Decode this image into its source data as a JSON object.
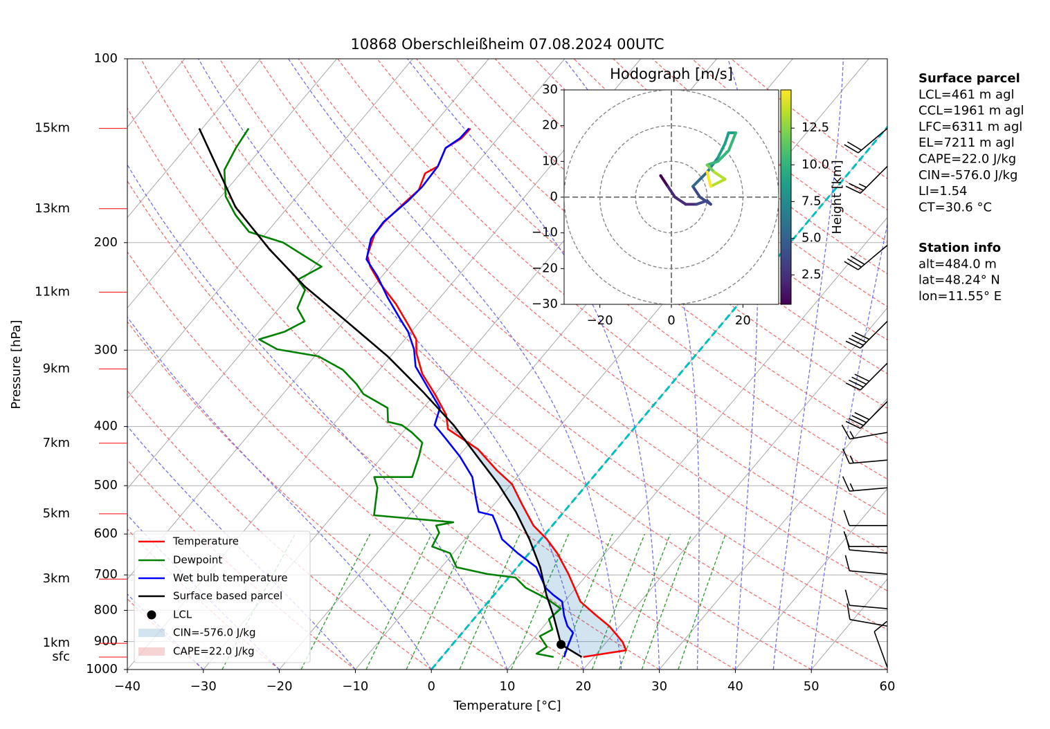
{
  "chart_data": {
    "type": "skewt",
    "title": "10868 Oberschleißheim 07.08.2024 00UTC",
    "xlabel": "Temperature [°C]",
    "ylabel": "Pressure [hPa]",
    "xlim": [
      -40,
      60
    ],
    "ylim": [
      1000,
      100
    ],
    "log_y": true,
    "grid": true,
    "xticks": [
      {
        "value": -40,
        "label": "−40"
      },
      {
        "value": -30,
        "label": "−30"
      },
      {
        "value": -20,
        "label": "−20"
      },
      {
        "value": -10,
        "label": "−10"
      },
      0,
      10,
      20,
      30,
      40,
      50,
      60
    ],
    "yticks": [
      100,
      200,
      300,
      400,
      500,
      600,
      700,
      800,
      900,
      1000
    ],
    "series": [
      {
        "name": "Temperature",
        "color": "#ff0000",
        "pressure": [
          954,
          930,
          901,
          849,
          812,
          774,
          735,
          698,
          645,
          612,
          581,
          538,
          497,
          472,
          436,
          404,
          383,
          354,
          328,
          303,
          288,
          273,
          252,
          233,
          219,
          210,
          194,
          185,
          171,
          164,
          154,
          150,
          140,
          135,
          130
        ],
        "values": [
          18.6,
          23.5,
          22.1,
          18.6,
          15.4,
          12.1,
          9.8,
          7.5,
          3.7,
          0.8,
          -2.5,
          -6.2,
          -9.9,
          -13.4,
          -18.2,
          -24.4,
          -26.2,
          -30.0,
          -33.9,
          -37.0,
          -38.5,
          -41.1,
          -45.1,
          -49.5,
          -52.6,
          -54.2,
          -55.6,
          -55.7,
          -55.1,
          -54.7,
          -55.7,
          -54.8,
          -55.8,
          -54.8,
          -54.7
        ]
      },
      {
        "name": "Dewpoint",
        "color": "#008000",
        "pressure": [
          954,
          942,
          918,
          882,
          860,
          827,
          795,
          765,
          735,
          707,
          698,
          680,
          645,
          629,
          597,
          581,
          574,
          559,
          504,
          484,
          484,
          448,
          425,
          409,
          398,
          393,
          373,
          354,
          341,
          323,
          307,
          299,
          288,
          280,
          269,
          256,
          239,
          230,
          219,
          200,
          192,
          180,
          168,
          152,
          140,
          130
        ],
        "values": [
          14.7,
          12.1,
          12.7,
          10.6,
          11.5,
          9.9,
          10.3,
          7.3,
          3.4,
          0.9,
          -3.1,
          -8.0,
          -10.4,
          -13.5,
          -14.1,
          -15.3,
          -13.4,
          -24.6,
          -27.2,
          -28.8,
          -23.8,
          -25.2,
          -26.3,
          -28.8,
          -30.9,
          -33.1,
          -34.7,
          -39.4,
          -41.4,
          -44.8,
          -49.5,
          -55.7,
          -59.2,
          -56.7,
          -55.2,
          -57.6,
          -58.6,
          -60.7,
          -59.0,
          -66.7,
          -72.4,
          -76.1,
          -79.4,
          -82.5,
          -83.4,
          -83.9
        ]
      },
      {
        "name": "Wet bulb temperature",
        "color": "#0000ff",
        "pressure": [
          954,
          918,
          871,
          849,
          816,
          774,
          755,
          735,
          680,
          645,
          612,
          581,
          559,
          552,
          524,
          484,
          448,
          414,
          398,
          373,
          345,
          319,
          299,
          280,
          266,
          246,
          227,
          213,
          197,
          185,
          171,
          162,
          150,
          140,
          135,
          130
        ],
        "values": [
          16.1,
          15.4,
          14.6,
          13.1,
          11.5,
          9.7,
          7.8,
          6.0,
          2.5,
          -1.5,
          -5.1,
          -7.3,
          -9.0,
          -11.2,
          -13.1,
          -15.9,
          -19.8,
          -24.3,
          -26.6,
          -27.8,
          -31.7,
          -35.6,
          -37.7,
          -40.4,
          -43.0,
          -46.9,
          -50.6,
          -53.9,
          -55.6,
          -55.8,
          -54.9,
          -54.6,
          -54.8,
          -55.8,
          -55.0,
          -54.9
        ]
      },
      {
        "name": "Surface based parcel",
        "color": "#000000",
        "pressure": [
          954,
          910,
          816,
          755,
          680,
          612,
          552,
          497,
          448,
          398,
          350,
          307,
          269,
          236,
          205,
          175,
          130
        ],
        "values": [
          18.4,
          14.3,
          10.1,
          6.9,
          3.0,
          -1.5,
          -6.3,
          -11.7,
          -17.5,
          -24.1,
          -32.0,
          -40.4,
          -49.7,
          -59.0,
          -67.8,
          -76.9,
          -90.4
        ]
      }
    ],
    "lcl": {
      "name": "LCL",
      "color": "#000000",
      "pressure": 910,
      "temperature": 14.3
    },
    "areas": [
      {
        "name": "CIN=-576.0 J/kg",
        "color": "#1f77b4"
      },
      {
        "name": "CAPE=22.0 J/kg",
        "color": "#d62728"
      }
    ],
    "freezing_isotherm": {
      "value": 0,
      "color": "#00bfbf"
    },
    "isotherms": [
      -120,
      -110,
      -100,
      -90,
      -80,
      -70,
      -60,
      -50,
      -40,
      -30,
      -20,
      -10,
      0,
      10,
      20,
      30,
      40,
      50
    ],
    "dry_adiabats": [
      -30,
      -20,
      -10,
      0,
      10,
      20,
      30,
      40,
      50,
      60,
      70,
      80,
      90,
      100,
      110,
      120,
      130,
      140,
      150,
      160,
      170,
      180,
      190,
      200
    ],
    "moist_adiabats": [
      -30,
      -20,
      -10,
      0,
      10,
      20,
      25,
      30,
      35,
      40,
      45,
      50
    ],
    "mixing_ratios": [
      0.4,
      1,
      2,
      3,
      5,
      8,
      12,
      16,
      20,
      24,
      32
    ],
    "height_labels": {
      "labels": [
        "15km",
        "13km",
        "11km",
        "9km",
        "7km",
        "5km",
        "3km",
        "1km",
        "sfc"
      ],
      "pressure": [
        130,
        176,
        241,
        322,
        426,
        556,
        711,
        906,
        954
      ],
      "color": "#ff0000"
    },
    "wind_barbs": {
      "pressure": [
        130,
        150,
        202,
        269,
        315,
        364,
        409,
        454,
        504,
        581,
        629,
        645,
        698,
        795,
        849,
        992
      ],
      "speed": [
        20,
        25,
        30,
        40,
        40,
        40,
        15,
        15,
        15,
        10,
        10,
        10,
        10,
        10,
        10,
        10
      ],
      "direction": [
        230,
        225,
        230,
        225,
        225,
        225,
        260,
        265,
        265,
        270,
        270,
        275,
        275,
        275,
        280,
        340
      ]
    },
    "hodograph": {
      "title": "Hodograph [m/s]",
      "xlim": [
        -30,
        30
      ],
      "ylim": [
        -30,
        30
      ],
      "xticks": [
        {
          "value": -20,
          "label": "−20"
        },
        0,
        20
      ],
      "yticks": [
        {
          "value": -30,
          "label": "−30"
        },
        {
          "value": -20,
          "label": "−20"
        },
        {
          "value": -10,
          "label": "−10"
        },
        0,
        10,
        20,
        30
      ],
      "rings": [
        10,
        20,
        30
      ],
      "u": [
        -3,
        -1,
        1,
        4,
        7,
        10,
        11,
        8,
        6,
        8,
        10,
        13,
        15,
        16,
        18,
        16,
        13,
        10,
        12,
        15,
        13,
        11,
        10
      ],
      "v": [
        6,
        3,
        0,
        -2,
        -2,
        -1,
        -2,
        0,
        3,
        5,
        7,
        11,
        15,
        18,
        18,
        13,
        10,
        9,
        7,
        5,
        4,
        3,
        7
      ],
      "height": [
        0.5,
        1,
        1.5,
        2,
        2.5,
        3,
        3.5,
        4,
        4.5,
        5,
        6,
        7,
        8,
        8.5,
        9,
        9.5,
        10,
        11,
        12,
        13,
        13.5,
        14,
        14.5
      ],
      "clim": [
        0.5,
        15.1
      ],
      "cticks": [
        2.5,
        {
          "value": 5,
          "label": "5.0"
        },
        7.5,
        {
          "value": 10,
          "label": "10.0"
        },
        12.5
      ],
      "clabel": "Height [km]"
    },
    "surface_parcel": {
      "title": "Surface parcel",
      "lines": [
        "LCL=461 m agl",
        "CCL=1961 m agl",
        "LFC=6311 m agl",
        "EL=7211 m agl",
        "CAPE=22.0 J/kg",
        "CIN=-576.0 J/kg",
        "LI=1.54",
        "CT=30.6 °C"
      ]
    },
    "station_info": {
      "title": "Station info",
      "lines": [
        "alt=484.0 m",
        "lat=48.24° N",
        "lon=11.55° E"
      ]
    }
  }
}
